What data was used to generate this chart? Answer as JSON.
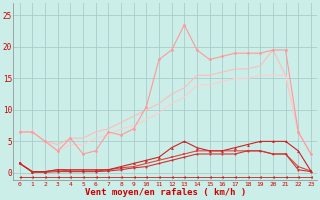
{
  "x": [
    0,
    1,
    2,
    3,
    4,
    5,
    6,
    7,
    8,
    9,
    10,
    11,
    12,
    13,
    14,
    15,
    16,
    17,
    18,
    19,
    20,
    21,
    22,
    23
  ],
  "background_color": "#cceee8",
  "grid_color": "#aacccc",
  "xlabel": "Vent moyen/en rafales ( km/h )",
  "xlabel_color": "#cc0000",
  "tick_color": "#cc0000",
  "ylim": [
    -1.2,
    27
  ],
  "xlim": [
    -0.5,
    23.5
  ],
  "lines": [
    {
      "y": [
        6.5,
        6.5,
        5.0,
        3.5,
        5.5,
        3.0,
        3.5,
        6.5,
        6.0,
        7.0,
        10.5,
        18.0,
        19.5,
        23.5,
        19.5,
        18.0,
        18.5,
        19.0,
        19.0,
        19.0,
        19.5,
        19.5,
        6.5,
        3.0
      ],
      "color": "#ff9999",
      "linewidth": 0.8,
      "marker": "o",
      "markersize": 2.0,
      "zorder": 3
    },
    {
      "y": [
        6.5,
        6.5,
        5.0,
        4.5,
        5.5,
        5.5,
        6.5,
        7.0,
        8.0,
        9.0,
        10.0,
        11.0,
        12.5,
        13.5,
        15.5,
        15.5,
        16.0,
        16.5,
        16.5,
        17.0,
        19.5,
        15.5,
        6.5,
        3.0
      ],
      "color": "#ffbbbb",
      "linewidth": 0.8,
      "marker": null,
      "markersize": 0,
      "zorder": 2
    },
    {
      "y": [
        6.5,
        6.5,
        5.0,
        3.5,
        4.5,
        4.5,
        5.5,
        6.0,
        7.0,
        7.5,
        8.5,
        9.5,
        11.0,
        12.0,
        14.0,
        14.0,
        14.5,
        15.0,
        15.0,
        15.5,
        15.5,
        15.5,
        6.5,
        3.0
      ],
      "color": "#ffcccc",
      "linewidth": 0.8,
      "marker": null,
      "markersize": 0,
      "zorder": 2
    },
    {
      "y": [
        1.5,
        0.2,
        0.2,
        0.5,
        0.5,
        0.5,
        0.5,
        0.5,
        1.0,
        1.5,
        2.0,
        2.5,
        4.0,
        5.0,
        4.0,
        3.5,
        3.5,
        4.0,
        4.5,
        5.0,
        5.0,
        5.0,
        3.5,
        0.3
      ],
      "color": "#cc2222",
      "linewidth": 0.8,
      "marker": "^",
      "markersize": 2.0,
      "zorder": 5
    },
    {
      "y": [
        1.5,
        0.2,
        0.2,
        0.5,
        0.3,
        0.3,
        0.3,
        0.5,
        0.8,
        1.0,
        1.5,
        2.0,
        2.5,
        3.0,
        3.5,
        3.5,
        3.5,
        3.5,
        3.5,
        3.5,
        3.0,
        3.0,
        1.0,
        0.3
      ],
      "color": "#dd4444",
      "linewidth": 0.8,
      "marker": "s",
      "markersize": 1.8,
      "zorder": 4
    },
    {
      "y": [
        1.5,
        0.1,
        0.1,
        0.2,
        0.2,
        0.2,
        0.2,
        0.3,
        0.5,
        0.8,
        1.0,
        1.5,
        2.0,
        2.5,
        3.0,
        3.0,
        3.0,
        3.0,
        3.5,
        3.5,
        3.0,
        3.0,
        0.5,
        0.2
      ],
      "color": "#cc3333",
      "linewidth": 0.8,
      "marker": "o",
      "markersize": 1.5,
      "zorder": 4
    },
    {
      "y": [
        -0.6,
        -0.6,
        -0.6,
        -0.6,
        -0.6,
        -0.6,
        -0.6,
        -0.6,
        -0.6,
        -0.6,
        -0.6,
        -0.6,
        -0.6,
        -0.6,
        -0.6,
        -0.6,
        -0.6,
        -0.6,
        -0.6,
        -0.6,
        -0.6,
        -0.6,
        -0.6,
        -0.6
      ],
      "color": "#cc2222",
      "linewidth": 0.6,
      "marker": "<",
      "markersize": 2.0,
      "zorder": 2
    }
  ]
}
